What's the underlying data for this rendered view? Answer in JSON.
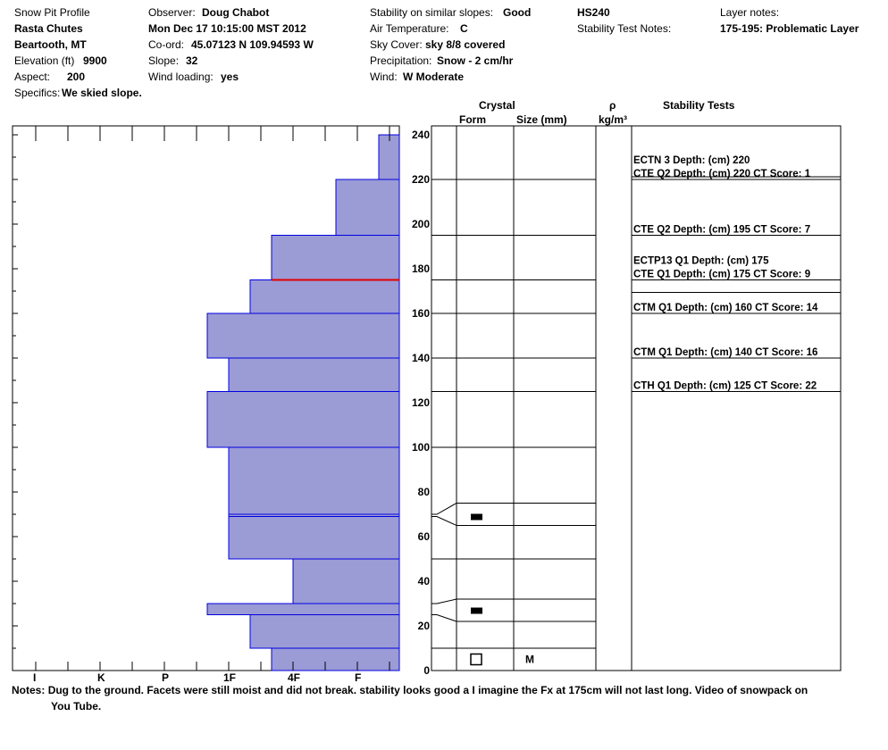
{
  "header": {
    "col1": {
      "title": "Snow Pit Profile",
      "location": "Rasta Chutes",
      "region": "Beartooth, MT",
      "elevation_label": "Elevation (ft)",
      "elevation_value": "9900",
      "aspect_label": "Aspect:",
      "aspect_value": "200",
      "specifics_label": "Specifics:",
      "specifics_value": "We skied slope."
    },
    "col2": {
      "observer_label": "Observer:",
      "observer_value": "Doug Chabot",
      "date": "Mon Dec 17 10:15:00 MST 2012",
      "coord_label": "Co-ord:",
      "coord_value": "45.07123 N 109.94593 W",
      "slope_label": "Slope:",
      "slope_value": "32",
      "wind_loading_label": "Wind loading:",
      "wind_loading_value": "yes"
    },
    "col3": {
      "stability_label": "Stability on similar slopes:",
      "stability_value": "Good",
      "air_temp_label": "Air Temperature:",
      "air_temp_value": "C",
      "sky_label": "Sky Cover:",
      "sky_value": "sky 8/8 covered",
      "precip_label": "Precipitation:",
      "precip_value": "Snow - 2 cm/hr",
      "wind_label": "Wind:",
      "wind_value": "W Moderate"
    },
    "col4": {
      "hs": "HS240",
      "stability_notes_label": "Stability Test Notes:"
    },
    "col5": {
      "layer_notes_label": "Layer notes:",
      "layer_notes_value": "175-195: Problematic Layer"
    }
  },
  "columns": {
    "crystal": "Crystal",
    "form": "Form",
    "size": "Size (mm)",
    "rho": "ρ",
    "density_unit": "kg/m³",
    "stability_tests": "Stability Tests"
  },
  "notes": {
    "label": "Notes:",
    "text": "Dug to the ground.  Facets were still moist and did not break.  stability looks good a I imagine the Fx at 175cm  will not last long.  Video of snowpack on",
    "text2": "You Tube."
  },
  "colors": {
    "bar_fill": "#9b9bd6",
    "bar_edge": "#0000e0",
    "problem_line": "#e00000"
  },
  "chart_data": {
    "type": "bar",
    "orientation": "horizontal",
    "hardness_ticks": [
      "I",
      "K",
      "P",
      "1F",
      "4F",
      "F"
    ],
    "depth_ticks": [
      0,
      20,
      40,
      60,
      80,
      100,
      120,
      140,
      160,
      180,
      200,
      220,
      240
    ],
    "ylim": [
      0,
      240
    ],
    "layers": [
      {
        "bottom": 0,
        "top": 10,
        "hardness": "4F+"
      },
      {
        "bottom": 10,
        "top": 25,
        "hardness": "1F-"
      },
      {
        "bottom": 25,
        "top": 30,
        "hardness": "1F+"
      },
      {
        "bottom": 30,
        "top": 50,
        "hardness": "4F"
      },
      {
        "bottom": 50,
        "top": 69,
        "hardness": "1F"
      },
      {
        "bottom": 69,
        "top": 70,
        "hardness": "1F"
      },
      {
        "bottom": 70,
        "top": 100,
        "hardness": "1F"
      },
      {
        "bottom": 100,
        "top": 125,
        "hardness": "1F+"
      },
      {
        "bottom": 125,
        "top": 140,
        "hardness": "1F"
      },
      {
        "bottom": 140,
        "top": 160,
        "hardness": "1F+"
      },
      {
        "bottom": 160,
        "top": 175,
        "hardness": "1F-"
      },
      {
        "bottom": 175,
        "top": 195,
        "hardness": "4F+"
      },
      {
        "bottom": 195,
        "top": 220,
        "hardness": "F+"
      },
      {
        "bottom": 220,
        "top": 240,
        "hardness": "F-"
      }
    ],
    "problem_layer_depth": 175,
    "crystal_boundaries": [
      0,
      10,
      22,
      32,
      50,
      65,
      75,
      100,
      125,
      140,
      160,
      175,
      195,
      220
    ],
    "crystal_symbols": [
      {
        "depth": 5,
        "symbol": "open-square",
        "size": "M"
      },
      {
        "depth": 27,
        "symbol": "filled-rect",
        "size": ""
      },
      {
        "depth": 69,
        "symbol": "filled-rect",
        "size": ""
      }
    ],
    "stability_tests": [
      {
        "depth": 220,
        "label": "ECTN 3   Depth: (cm) 220",
        "line": false
      },
      {
        "depth": 220,
        "label": "CTE Q2 Depth: (cm) 220 CT Score: 1",
        "line": true
      },
      {
        "depth": 195,
        "label": "CTE Q2 Depth: (cm) 195 CT Score: 7",
        "line": true
      },
      {
        "depth": 175,
        "label": "ECTP13 Q1 Depth: (cm) 175",
        "line": false
      },
      {
        "depth": 175,
        "label": "CTE Q1 Depth: (cm) 175 CT Score: 9",
        "line": true
      },
      {
        "depth": 160,
        "label": "CTM Q1 Depth: (cm) 160 CT Score: 14",
        "line": true
      },
      {
        "depth": 140,
        "label": "CTM Q1 Depth: (cm) 140 CT Score: 16",
        "line": true
      },
      {
        "depth": 125,
        "label": "CTH Q1 Depth: (cm) 125 CT Score: 22",
        "line": true
      }
    ]
  }
}
